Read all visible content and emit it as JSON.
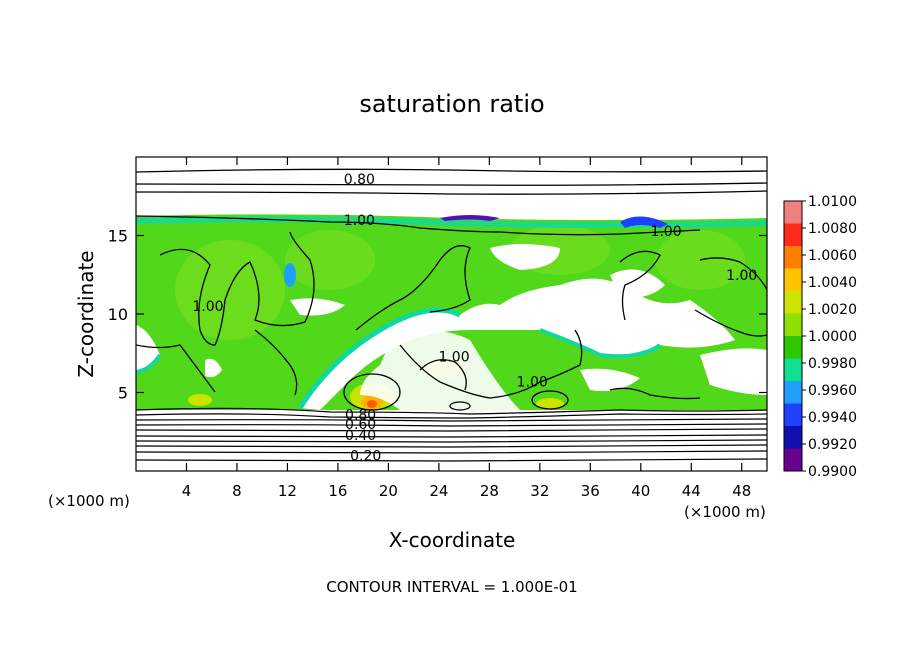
{
  "chart_data": {
    "type": "heatmap",
    "title": "saturation ratio",
    "xlabel": "X-coordinate",
    "ylabel": "Z-coordinate",
    "x_unit_label": "(×1000 m)",
    "y_unit_label": "(×1000 m)",
    "xlim": [
      0,
      50
    ],
    "ylim": [
      0,
      20
    ],
    "x_ticks": [
      4,
      8,
      12,
      16,
      20,
      24,
      28,
      32,
      36,
      40,
      44,
      48
    ],
    "y_ticks": [
      5,
      10,
      15
    ],
    "colorbar": {
      "min": 0.99,
      "max": 1.01,
      "labels": [
        "1.0100",
        "1.0080",
        "1.0060",
        "1.0040",
        "1.0020",
        "1.0000",
        "0.9980",
        "0.9960",
        "0.9940",
        "0.9920",
        "0.9900"
      ],
      "colors": [
        "#f07f7f",
        "#ff2a1a",
        "#ff7f00",
        "#ffc400",
        "#cfe400",
        "#8fe000",
        "#2fc800",
        "#10e090",
        "#1f9fff",
        "#2040ff",
        "#1010b0",
        "#6a0090"
      ]
    },
    "contour_levels": [
      {
        "value": 0.2,
        "label": "0.20",
        "label_x": 18.2,
        "label_y": 1.0
      },
      {
        "value": 0.4,
        "label": "0.40",
        "label_x": 17.8,
        "label_y": 2.3
      },
      {
        "value": 0.6,
        "label": "0.60",
        "label_x": 17.8,
        "label_y": 3.0
      },
      {
        "value": 0.8,
        "label": "0.80",
        "label_x": 17.8,
        "label_y": 3.6
      },
      {
        "value": 0.8,
        "label": "0.80",
        "label_x": 17.7,
        "label_y": 18.6
      },
      {
        "value": 1.0,
        "label": "1.00",
        "label_x": 17.7,
        "label_y": 16.0
      },
      {
        "value": 1.0,
        "label": "1.00",
        "label_x": 42.0,
        "label_y": 15.3
      },
      {
        "value": 1.0,
        "label": "1.00",
        "label_x": 5.7,
        "label_y": 10.5
      },
      {
        "value": 1.0,
        "label": "1.00",
        "label_x": 48.0,
        "label_y": 12.5
      },
      {
        "value": 1.0,
        "label": "1.00",
        "label_x": 25.2,
        "label_y": 7.3
      },
      {
        "value": 1.0,
        "label": "1.00",
        "label_x": 31.4,
        "label_y": 5.7
      }
    ],
    "footer": "CONTOUR INTERVAL = 1.000E-01"
  }
}
